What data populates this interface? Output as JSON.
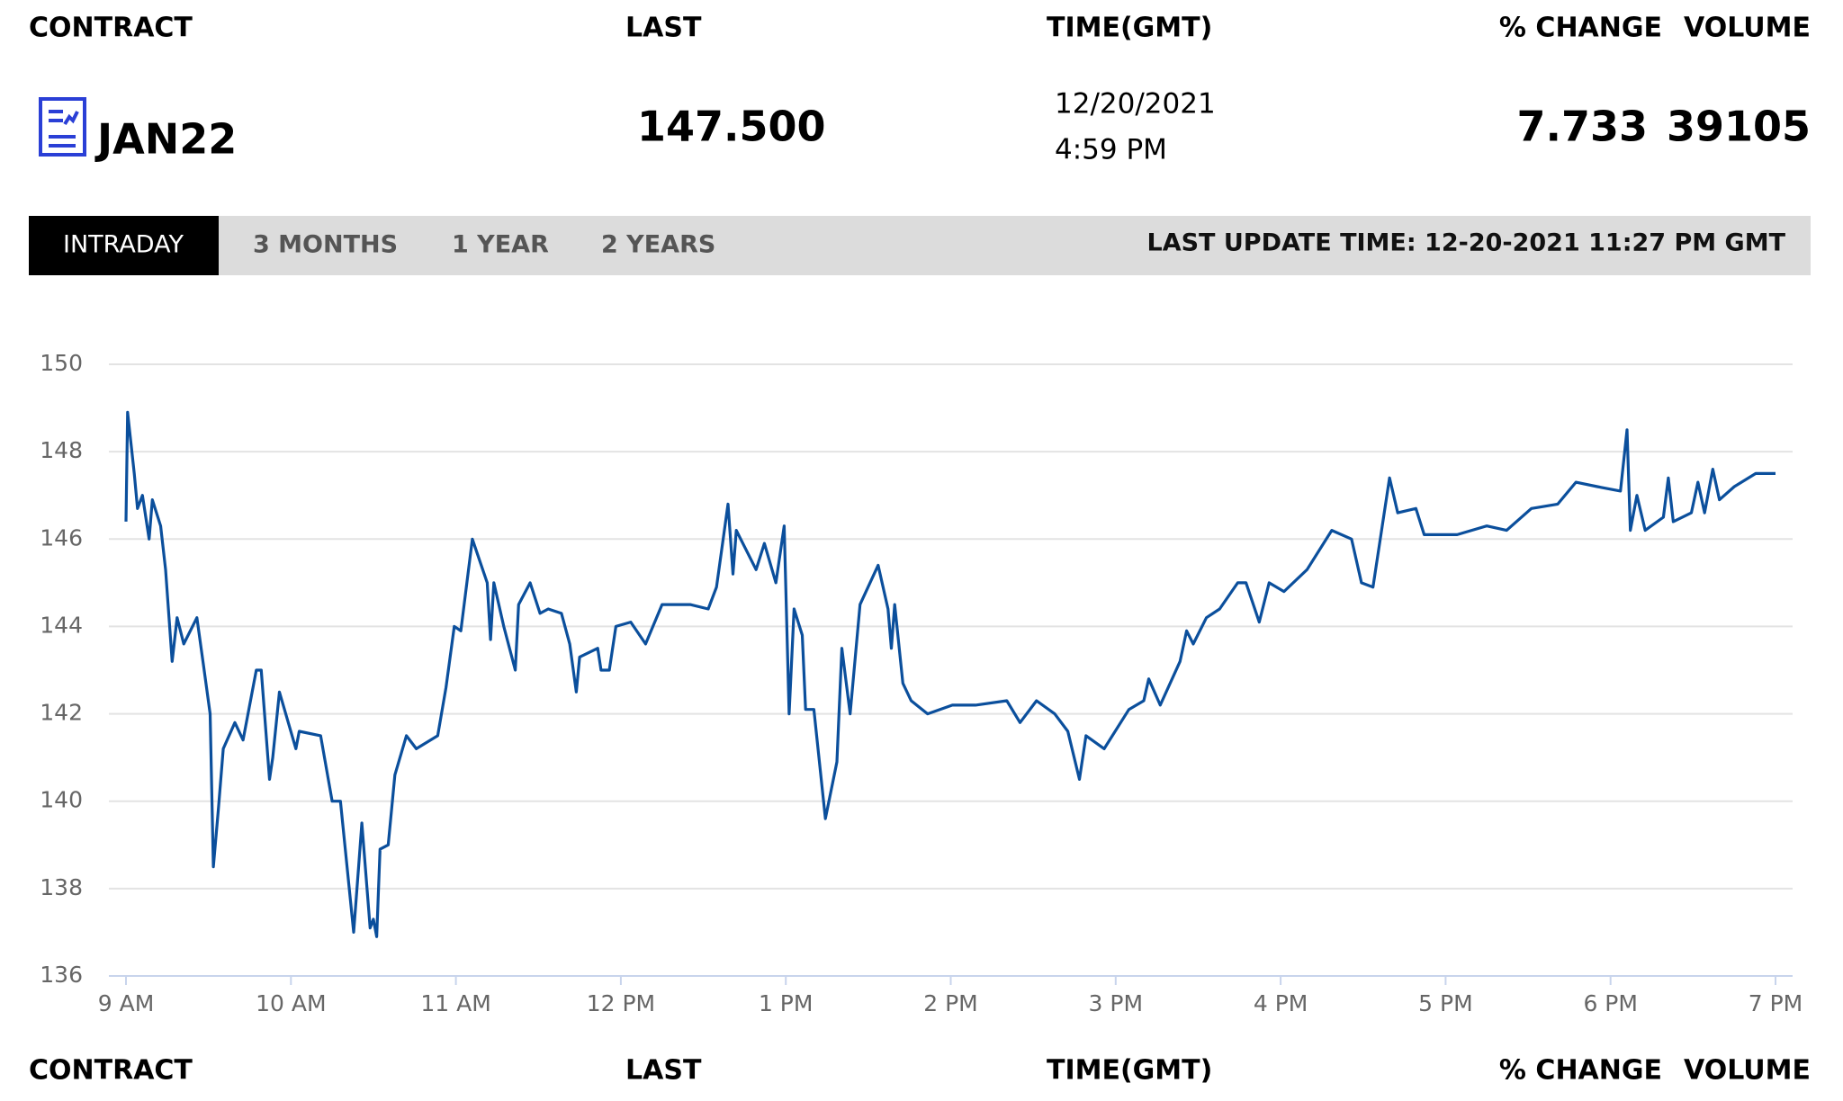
{
  "header": {
    "columns": [
      "CONTRACT",
      "LAST",
      "TIME(GMT)",
      "% CHANGE",
      "VOLUME"
    ]
  },
  "quote": {
    "contract": "JAN22",
    "last": "147.500",
    "date": "12/20/2021",
    "time": "4:59 PM",
    "change": "7.733",
    "volume": "39105"
  },
  "tabs": [
    "INTRADAY",
    "3 MONTHS",
    "1 YEAR",
    "2 YEARS"
  ],
  "last_update": "LAST UPDATE TIME: 12-20-2021 11:27 PM GMT",
  "chart_data": {
    "type": "line",
    "color": "#0b4f9c",
    "grid": true,
    "xlim": [
      9,
      19
    ],
    "xticks": [
      {
        "value": 9,
        "label": "9 AM"
      },
      {
        "value": 10,
        "label": "10 AM"
      },
      {
        "value": 11,
        "label": "11 AM"
      },
      {
        "value": 12,
        "label": "12 PM"
      },
      {
        "value": 13,
        "label": "1 PM"
      },
      {
        "value": 14,
        "label": "2 PM"
      },
      {
        "value": 15,
        "label": "3 PM"
      },
      {
        "value": 16,
        "label": "4 PM"
      },
      {
        "value": 17,
        "label": "5 PM"
      },
      {
        "value": 18,
        "label": "6 PM"
      },
      {
        "value": 19,
        "label": "7 PM"
      }
    ],
    "ylim": [
      136,
      150
    ],
    "yticks": [
      136,
      138,
      140,
      142,
      144,
      146,
      148,
      150
    ],
    "x": [
      9.0,
      9.01,
      9.05,
      9.07,
      9.1,
      9.14,
      9.16,
      9.21,
      9.24,
      9.28,
      9.31,
      9.35,
      9.43,
      9.47,
      9.51,
      9.53,
      9.56,
      9.59,
      9.66,
      9.71,
      9.79,
      9.82,
      9.87,
      9.89,
      9.93,
      10.03,
      10.05,
      10.18,
      10.25,
      10.3,
      10.38,
      10.41,
      10.43,
      10.48,
      10.5,
      10.52,
      10.54,
      10.59,
      10.63,
      10.7,
      10.76,
      10.89,
      10.94,
      10.99,
      11.03,
      11.1,
      11.19,
      11.21,
      11.23,
      11.29,
      11.36,
      11.38,
      11.45,
      11.51,
      11.56,
      11.64,
      11.69,
      11.73,
      11.75,
      11.86,
      11.88,
      11.93,
      11.97,
      12.06,
      12.15,
      12.25,
      12.35,
      12.42,
      12.53,
      12.58,
      12.65,
      12.68,
      12.7,
      12.82,
      12.87,
      12.94,
      12.99,
      13.02,
      13.05,
      13.1,
      13.12,
      13.17,
      13.24,
      13.31,
      13.34,
      13.39,
      13.45,
      13.56,
      13.62,
      13.64,
      13.66,
      13.71,
      13.76,
      13.86,
      14.01,
      14.15,
      14.34,
      14.42,
      14.52,
      14.63,
      14.71,
      14.78,
      14.82,
      14.93,
      15.08,
      15.17,
      15.2,
      15.27,
      15.39,
      15.43,
      15.47,
      15.55,
      15.63,
      15.74,
      15.79,
      15.87,
      15.93,
      16.02,
      16.16,
      16.31,
      16.43,
      16.49,
      16.56,
      16.66,
      16.71,
      16.82,
      16.87,
      17.07,
      17.25,
      17.37,
      17.52,
      17.68,
      17.79,
      17.92,
      18.06,
      18.1,
      18.12,
      18.16,
      18.21,
      18.32,
      18.35,
      18.38,
      18.49,
      18.53,
      18.57,
      18.62,
      18.66,
      18.75,
      18.88,
      19.0
    ],
    "values": [
      146.4,
      148.9,
      147.5,
      146.7,
      147,
      146,
      146.9,
      146.3,
      145.3,
      143.2,
      144.2,
      143.6,
      144.2,
      143.1,
      142,
      138.5,
      139.8,
      141.2,
      141.8,
      141.4,
      143,
      143,
      140.5,
      141,
      142.5,
      141.2,
      141.6,
      141.5,
      140,
      140,
      137,
      138.5,
      139.5,
      137.1,
      137.3,
      136.9,
      138.9,
      139,
      140.6,
      141.5,
      141.2,
      141.5,
      142.6,
      144,
      143.9,
      146,
      145,
      143.7,
      145,
      144,
      143,
      144.5,
      145,
      144.3,
      144.4,
      144.3,
      143.6,
      142.5,
      143.3,
      143.5,
      143,
      143,
      144,
      144.1,
      143.6,
      144.5,
      144.5,
      144.5,
      144.4,
      144.9,
      146.8,
      145.2,
      146.2,
      145.3,
      145.9,
      145,
      146.3,
      142,
      144.4,
      143.8,
      142.1,
      142.1,
      139.6,
      140.9,
      143.5,
      142,
      144.5,
      145.4,
      144.4,
      143.5,
      144.5,
      142.7,
      142.3,
      142,
      142.2,
      142.2,
      142.3,
      141.8,
      142.3,
      142,
      141.6,
      140.5,
      141.5,
      141.2,
      142.1,
      142.3,
      142.8,
      142.2,
      143.2,
      143.9,
      143.6,
      144.2,
      144.4,
      145,
      145,
      144.1,
      145,
      144.8,
      145.3,
      146.2,
      146,
      145,
      144.9,
      147.4,
      146.6,
      146.7,
      146.1,
      146.1,
      146.3,
      146.2,
      146.7,
      146.8,
      147.3,
      147.2,
      147.1,
      148.5,
      146.2,
      147,
      146.2,
      146.5,
      147.4,
      146.4,
      146.6,
      147.3,
      146.6,
      147.6,
      146.9,
      147.2,
      147.5,
      147.5
    ]
  }
}
